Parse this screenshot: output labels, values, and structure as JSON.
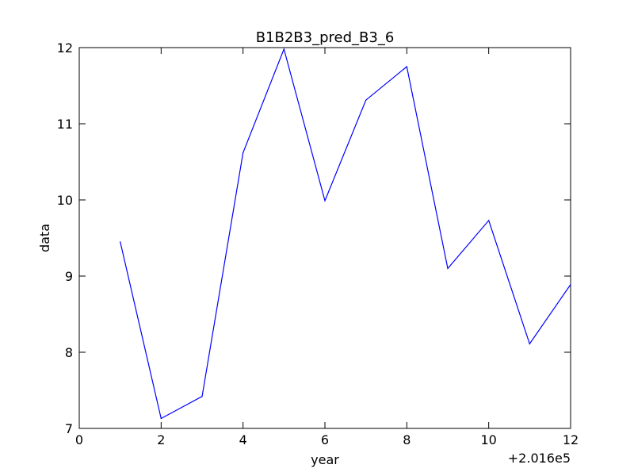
{
  "chart_data": {
    "type": "line",
    "title": "B1B2B3_pred_B3_6",
    "xlabel": "year",
    "ylabel": "data",
    "x_offset_label": "+2.016e5",
    "xlim": [
      0,
      12
    ],
    "ylim": [
      7,
      12
    ],
    "x_ticks": [
      0,
      2,
      4,
      6,
      8,
      10,
      12
    ],
    "y_ticks": [
      7,
      8,
      9,
      10,
      11,
      12
    ],
    "x_tick_labels": [
      "0",
      "2",
      "4",
      "6",
      "8",
      "10",
      "12"
    ],
    "y_tick_labels": [
      "7",
      "8",
      "9",
      "10",
      "11",
      "12"
    ],
    "grid": false,
    "series": [
      {
        "color": "#0000ff",
        "x": [
          1,
          2,
          3,
          4,
          5,
          6,
          7,
          8,
          9,
          10,
          11,
          12
        ],
        "values": [
          9.45,
          7.13,
          7.42,
          10.62,
          11.98,
          9.99,
          11.31,
          11.75,
          9.1,
          9.73,
          8.11,
          8.89
        ]
      }
    ]
  }
}
